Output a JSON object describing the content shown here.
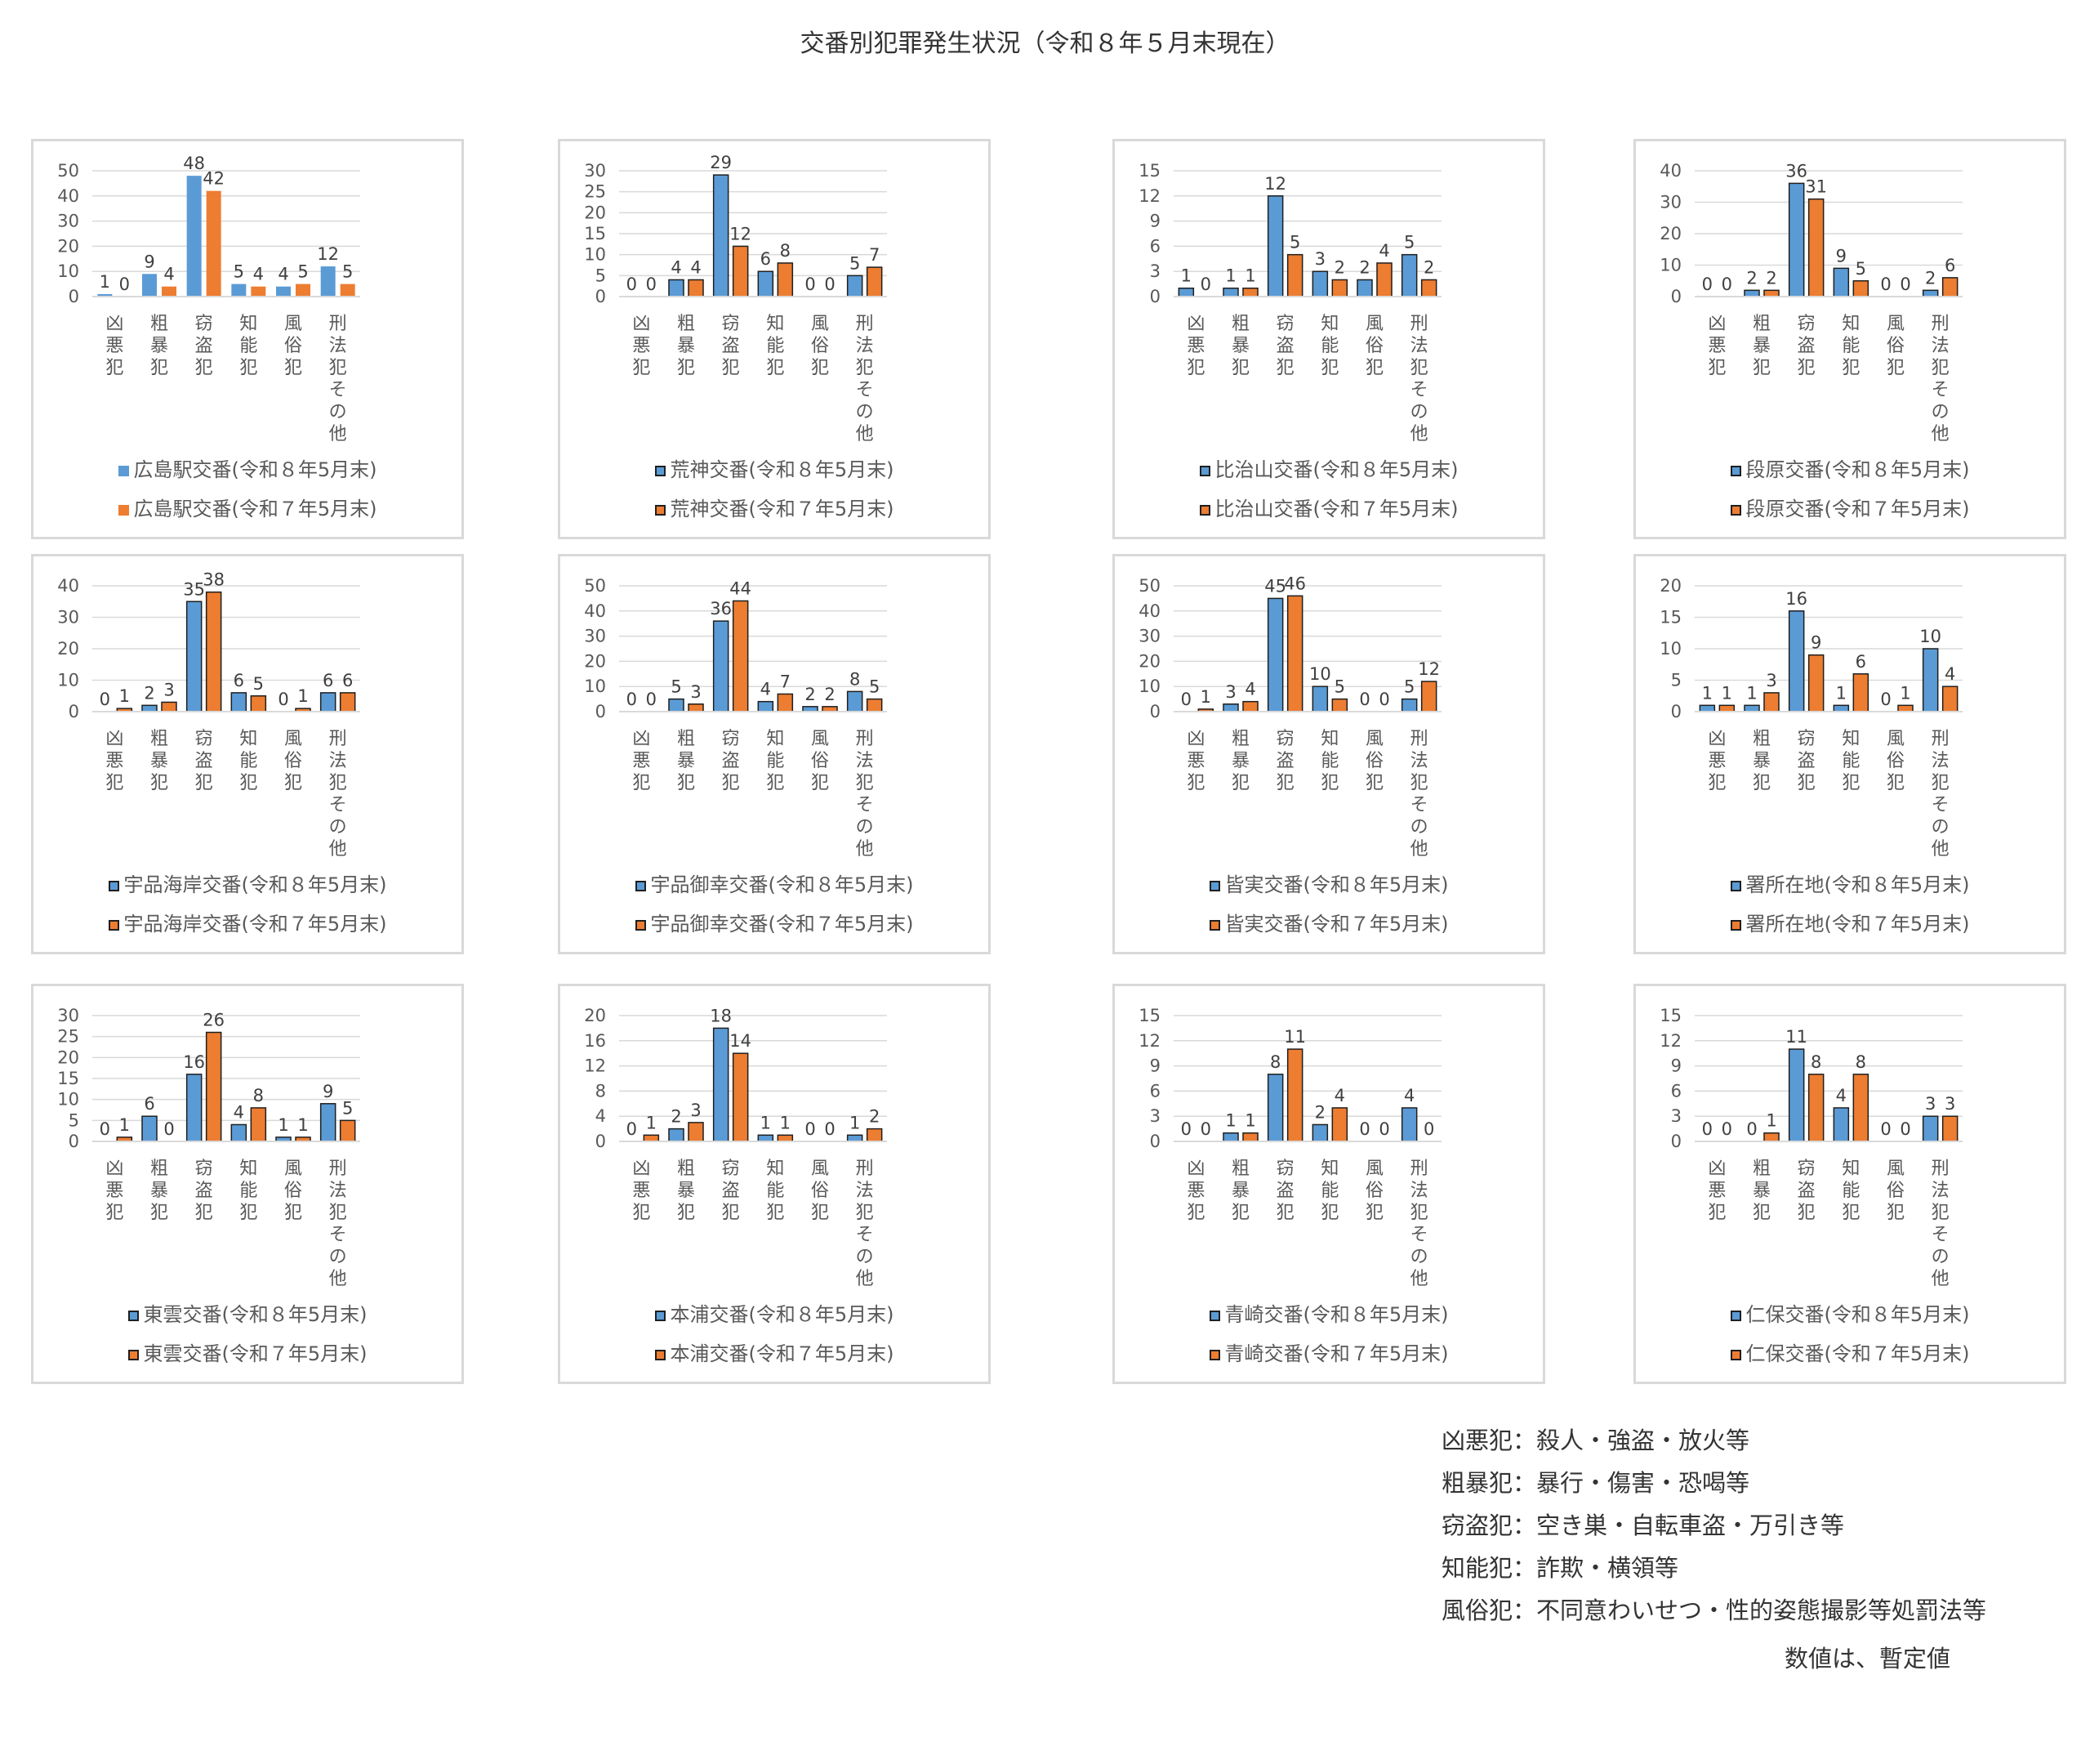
{
  "title": "交番別犯罪発生状況（令和８年５月末現在）",
  "colors": {
    "current": "#5b9bd5",
    "previous": "#ed7d31",
    "grid": "#d9d9d9",
    "border_dark": "#1f1f1f"
  },
  "chart_data": [
    {
      "type": "bar",
      "categories": [
        "凶悪犯",
        "粗暴犯",
        "窃盗犯",
        "知能犯",
        "風俗犯",
        "刑法犯その他"
      ],
      "ylim": [
        0,
        50
      ],
      "yticks": [
        0,
        10,
        20,
        30,
        40,
        50
      ],
      "series": [
        {
          "name": "広島駅交番(令和８年5月末)",
          "values": [
            1,
            9,
            48,
            5,
            4,
            12
          ]
        },
        {
          "name": "広島駅交番(令和７年5月末)",
          "values": [
            0,
            4,
            42,
            4,
            5,
            5
          ]
        }
      ]
    },
    {
      "type": "bar",
      "categories": [
        "凶悪犯",
        "粗暴犯",
        "窃盗犯",
        "知能犯",
        "風俗犯",
        "刑法犯その他"
      ],
      "ylim": [
        0,
        30
      ],
      "yticks": [
        0,
        5,
        10,
        15,
        20,
        25,
        30
      ],
      "series": [
        {
          "name": "荒神交番(令和８年5月末)",
          "values": [
            0,
            4,
            29,
            6,
            0,
            5
          ]
        },
        {
          "name": "荒神交番(令和７年5月末)",
          "values": [
            0,
            4,
            12,
            8,
            0,
            7
          ]
        }
      ]
    },
    {
      "type": "bar",
      "categories": [
        "凶悪犯",
        "粗暴犯",
        "窃盗犯",
        "知能犯",
        "風俗犯",
        "刑法犯その他"
      ],
      "ylim": [
        0,
        15
      ],
      "yticks": [
        0,
        3,
        6,
        9,
        12,
        15
      ],
      "series": [
        {
          "name": "比治山交番(令和８年5月末)",
          "values": [
            1,
            1,
            12,
            3,
            2,
            5
          ]
        },
        {
          "name": "比治山交番(令和７年5月末)",
          "values": [
            0,
            1,
            5,
            2,
            4,
            2
          ]
        }
      ]
    },
    {
      "type": "bar",
      "categories": [
        "凶悪犯",
        "粗暴犯",
        "窃盗犯",
        "知能犯",
        "風俗犯",
        "刑法犯その他"
      ],
      "ylim": [
        0,
        40
      ],
      "yticks": [
        0,
        10,
        20,
        30,
        40
      ],
      "series": [
        {
          "name": "段原交番(令和８年5月末)",
          "values": [
            0,
            2,
            36,
            9,
            0,
            2
          ]
        },
        {
          "name": "段原交番(令和７年5月末)",
          "values": [
            0,
            2,
            31,
            5,
            0,
            6
          ]
        }
      ]
    },
    {
      "type": "bar",
      "categories": [
        "凶悪犯",
        "粗暴犯",
        "窃盗犯",
        "知能犯",
        "風俗犯",
        "刑法犯その他"
      ],
      "ylim": [
        0,
        40
      ],
      "yticks": [
        0,
        10,
        20,
        30,
        40
      ],
      "series": [
        {
          "name": "宇品海岸交番(令和８年5月末)",
          "values": [
            0,
            2,
            35,
            6,
            0,
            6
          ]
        },
        {
          "name": "宇品海岸交番(令和７年5月末)",
          "values": [
            1,
            3,
            38,
            5,
            1,
            6
          ]
        }
      ]
    },
    {
      "type": "bar",
      "categories": [
        "凶悪犯",
        "粗暴犯",
        "窃盗犯",
        "知能犯",
        "風俗犯",
        "刑法犯その他"
      ],
      "ylim": [
        0,
        50
      ],
      "yticks": [
        0,
        10,
        20,
        30,
        40,
        50
      ],
      "series": [
        {
          "name": "宇品御幸交番(令和８年5月末)",
          "values": [
            0,
            5,
            36,
            4,
            2,
            8
          ]
        },
        {
          "name": "宇品御幸交番(令和７年5月末)",
          "values": [
            0,
            3,
            44,
            7,
            2,
            5
          ]
        }
      ]
    },
    {
      "type": "bar",
      "categories": [
        "凶悪犯",
        "粗暴犯",
        "窃盗犯",
        "知能犯",
        "風俗犯",
        "刑法犯その他"
      ],
      "ylim": [
        0,
        50
      ],
      "yticks": [
        0,
        10,
        20,
        30,
        40,
        50
      ],
      "series": [
        {
          "name": "皆実交番(令和８年5月末)",
          "values": [
            0,
            3,
            45,
            10,
            0,
            5
          ]
        },
        {
          "name": "皆実交番(令和７年5月末)",
          "values": [
            1,
            4,
            46,
            5,
            0,
            12
          ]
        }
      ]
    },
    {
      "type": "bar",
      "categories": [
        "凶悪犯",
        "粗暴犯",
        "窃盗犯",
        "知能犯",
        "風俗犯",
        "刑法犯その他"
      ],
      "ylim": [
        0,
        20
      ],
      "yticks": [
        0,
        5,
        10,
        15,
        20
      ],
      "series": [
        {
          "name": "署所在地(令和８年5月末)",
          "values": [
            1,
            1,
            16,
            1,
            0,
            10
          ]
        },
        {
          "name": "署所在地(令和７年5月末)",
          "values": [
            1,
            3,
            9,
            6,
            1,
            4
          ]
        }
      ]
    },
    {
      "type": "bar",
      "categories": [
        "凶悪犯",
        "粗暴犯",
        "窃盗犯",
        "知能犯",
        "風俗犯",
        "刑法犯その他"
      ],
      "ylim": [
        0,
        30
      ],
      "yticks": [
        0,
        5,
        10,
        15,
        20,
        25,
        30
      ],
      "series": [
        {
          "name": "東雲交番(令和８年5月末)",
          "values": [
            0,
            6,
            16,
            4,
            1,
            9
          ]
        },
        {
          "name": "東雲交番(令和７年5月末)",
          "values": [
            1,
            0,
            26,
            8,
            1,
            5
          ]
        }
      ]
    },
    {
      "type": "bar",
      "categories": [
        "凶悪犯",
        "粗暴犯",
        "窃盗犯",
        "知能犯",
        "風俗犯",
        "刑法犯その他"
      ],
      "ylim": [
        0,
        20
      ],
      "yticks": [
        0,
        4,
        8,
        12,
        16,
        20
      ],
      "series": [
        {
          "name": "本浦交番(令和８年5月末)",
          "values": [
            0,
            2,
            18,
            1,
            0,
            1
          ]
        },
        {
          "name": "本浦交番(令和７年5月末)",
          "values": [
            1,
            3,
            14,
            1,
            0,
            2
          ]
        }
      ]
    },
    {
      "type": "bar",
      "categories": [
        "凶悪犯",
        "粗暴犯",
        "窃盗犯",
        "知能犯",
        "風俗犯",
        "刑法犯その他"
      ],
      "ylim": [
        0,
        15
      ],
      "yticks": [
        0,
        3,
        6,
        9,
        12,
        15
      ],
      "series": [
        {
          "name": "青崎交番(令和８年5月末)",
          "values": [
            0,
            1,
            8,
            2,
            0,
            4
          ]
        },
        {
          "name": "青崎交番(令和７年5月末)",
          "values": [
            0,
            1,
            11,
            4,
            0,
            0
          ]
        }
      ]
    },
    {
      "type": "bar",
      "categories": [
        "凶悪犯",
        "粗暴犯",
        "窃盗犯",
        "知能犯",
        "風俗犯",
        "刑法犯その他"
      ],
      "ylim": [
        0,
        15
      ],
      "yticks": [
        0,
        3,
        6,
        9,
        12,
        15
      ],
      "series": [
        {
          "name": "仁保交番(令和８年5月末)",
          "values": [
            0,
            0,
            11,
            4,
            0,
            3
          ]
        },
        {
          "name": "仁保交番(令和７年5月末)",
          "values": [
            0,
            1,
            8,
            8,
            0,
            3
          ]
        }
      ]
    }
  ],
  "notes": [
    "凶悪犯：殺人・強盗・放火等",
    "粗暴犯：暴行・傷害・恐喝等",
    "窃盗犯：空き巣・自転車盗・万引き等",
    "知能犯：詐欺・横領等",
    "風俗犯：不同意わいせつ・性的姿態撮影等処罰法等"
  ],
  "footnote": "数値は、暫定値"
}
